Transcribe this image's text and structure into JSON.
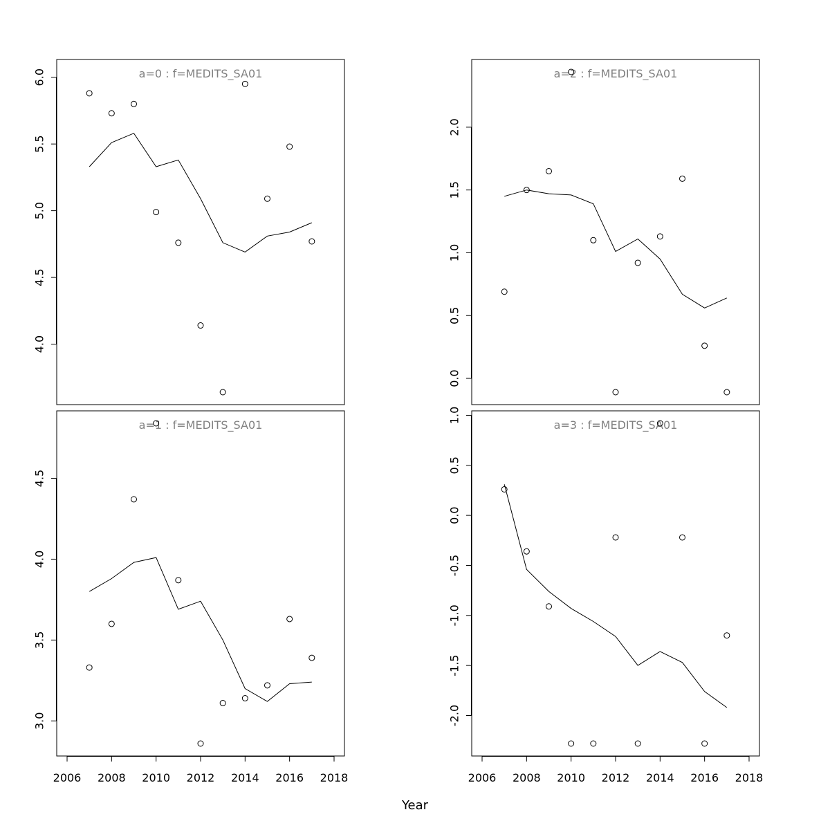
{
  "figure": {
    "xlabel": "Year"
  },
  "chart_data": [
    {
      "type": "scatter",
      "title": "a=0  :  f=MEDITS_SA01",
      "xlim": [
        2006,
        2018
      ],
      "ylim": [
        3.64,
        6.04
      ],
      "yticks": [
        "4.0",
        "4.5",
        "5.0",
        "5.5",
        "6.0"
      ],
      "xticks": [],
      "points": {
        "x": [
          2007,
          2008,
          2009,
          2010,
          2011,
          2012,
          2013,
          2014,
          2015,
          2016,
          2017
        ],
        "y": [
          5.88,
          5.73,
          5.8,
          4.99,
          4.76,
          4.14,
          3.64,
          5.95,
          5.09,
          5.48,
          4.77
        ]
      },
      "fitted": {
        "x": [
          2007,
          2008,
          2009,
          2010,
          2011,
          2012,
          2013,
          2014,
          2015,
          2016,
          2017
        ],
        "y": [
          5.33,
          5.51,
          5.58,
          5.33,
          5.38,
          5.09,
          4.76,
          4.69,
          4.81,
          4.84,
          4.91
        ]
      }
    },
    {
      "type": "scatter",
      "title": "a=2  :  f=MEDITS_SA01",
      "xlim": [
        2006,
        2018
      ],
      "ylim": [
        -0.11,
        2.44
      ],
      "yticks": [
        "0.0",
        "0.5",
        "1.0",
        "1.5",
        "2.0"
      ],
      "xticks": [],
      "points": {
        "x": [
          2007,
          2008,
          2009,
          2010,
          2011,
          2012,
          2013,
          2014,
          2015,
          2016,
          2017
        ],
        "y": [
          0.69,
          1.5,
          1.65,
          2.44,
          1.1,
          -0.11,
          0.92,
          1.13,
          1.59,
          0.26,
          -0.11
        ]
      },
      "fitted": {
        "x": [
          2007,
          2008,
          2009,
          2010,
          2011,
          2012,
          2013,
          2014,
          2015,
          2016,
          2017
        ],
        "y": [
          1.45,
          1.5,
          1.47,
          1.46,
          1.39,
          1.01,
          1.11,
          0.95,
          0.67,
          0.56,
          0.64
        ]
      }
    },
    {
      "type": "scatter",
      "title": "a=1  :  f=MEDITS_SA01",
      "xlim": [
        2006,
        2018
      ],
      "ylim": [
        2.86,
        4.84
      ],
      "yticks": [
        "3.0",
        "3.5",
        "4.0",
        "4.5"
      ],
      "xticks": [
        "2006",
        "2008",
        "2010",
        "2012",
        "2014",
        "2016",
        "2018"
      ],
      "points": {
        "x": [
          2007,
          2008,
          2009,
          2010,
          2011,
          2012,
          2013,
          2014,
          2015,
          2016,
          2017
        ],
        "y": [
          3.33,
          3.6,
          4.37,
          4.84,
          3.87,
          2.86,
          3.11,
          3.14,
          3.22,
          3.63,
          3.39
        ]
      },
      "fitted": {
        "x": [
          2007,
          2008,
          2009,
          2010,
          2011,
          2012,
          2013,
          2014,
          2015,
          2016,
          2017
        ],
        "y": [
          3.8,
          3.88,
          3.98,
          4.01,
          3.69,
          3.74,
          3.5,
          3.2,
          3.12,
          3.23,
          3.24
        ]
      }
    },
    {
      "type": "scatter",
      "title": "a=3  :  f=MEDITS_SA01",
      "xlim": [
        2006,
        2018
      ],
      "ylim": [
        -2.28,
        0.92
      ],
      "yticks": [
        "-2.0",
        "-1.5",
        "-1.0",
        "-0.5",
        "0.0",
        "0.5",
        "1.0"
      ],
      "xticks": [
        "2006",
        "2008",
        "2010",
        "2012",
        "2014",
        "2016",
        "2018"
      ],
      "points": {
        "x": [
          2007,
          2008,
          2009,
          2010,
          2011,
          2012,
          2013,
          2014,
          2015,
          2016,
          2017
        ],
        "y": [
          0.26,
          -0.36,
          -0.91,
          -2.28,
          -2.28,
          -0.22,
          -2.28,
          0.92,
          -0.22,
          -2.28,
          -1.2
        ]
      },
      "fitted": {
        "x": [
          2007,
          2008,
          2009,
          2010,
          2011,
          2012,
          2013,
          2014,
          2015,
          2016,
          2017
        ],
        "y": [
          0.31,
          -0.54,
          -0.76,
          -0.93,
          -1.06,
          -1.21,
          -1.5,
          -1.36,
          -1.47,
          -1.76,
          -1.92
        ]
      }
    }
  ]
}
